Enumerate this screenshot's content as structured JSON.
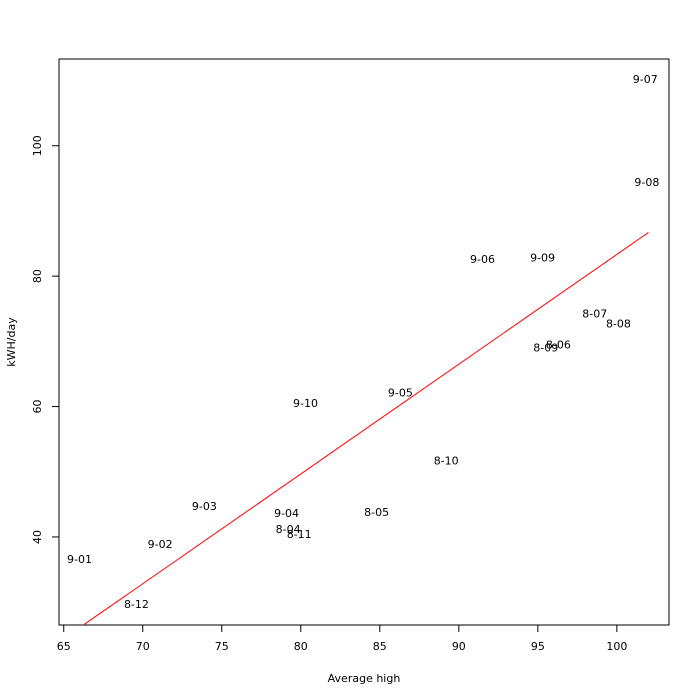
{
  "chart_data": {
    "type": "scatter",
    "x_label": "Average high",
    "y_label": "kWH/day",
    "labels": [
      "9-01",
      "8-12",
      "9-02",
      "9-03",
      "9-04",
      "8-04",
      "8-11",
      "9-10",
      "8-05",
      "9-05",
      "8-10",
      "9-06",
      "9-09",
      "8-09",
      "8-06",
      "8-07",
      "8-08",
      "9-08",
      "9-07"
    ],
    "x": [
      66.0,
      69.6,
      71.1,
      73.9,
      79.1,
      79.2,
      79.9,
      80.3,
      84.8,
      86.3,
      89.2,
      91.5,
      95.3,
      95.5,
      96.3,
      98.6,
      100.1,
      101.9,
      101.8
    ],
    "y": [
      36.5,
      29.6,
      38.8,
      44.6,
      43.5,
      41.1,
      40.3,
      60.4,
      43.7,
      62.0,
      51.6,
      82.5,
      82.7,
      68.9,
      69.4,
      74.1,
      72.6,
      94.3,
      110.1
    ],
    "fit": {
      "color": "#ff0000",
      "x": [
        66.3,
        102.0
      ],
      "y": [
        26.6,
        86.7
      ]
    },
    "xlim": [
      64.7,
      103.3
    ],
    "ylim": [
      26.5,
      113.3
    ],
    "xticks": [
      65,
      70,
      75,
      80,
      85,
      90,
      95,
      100
    ],
    "yticks": [
      40,
      60,
      80,
      100
    ]
  }
}
